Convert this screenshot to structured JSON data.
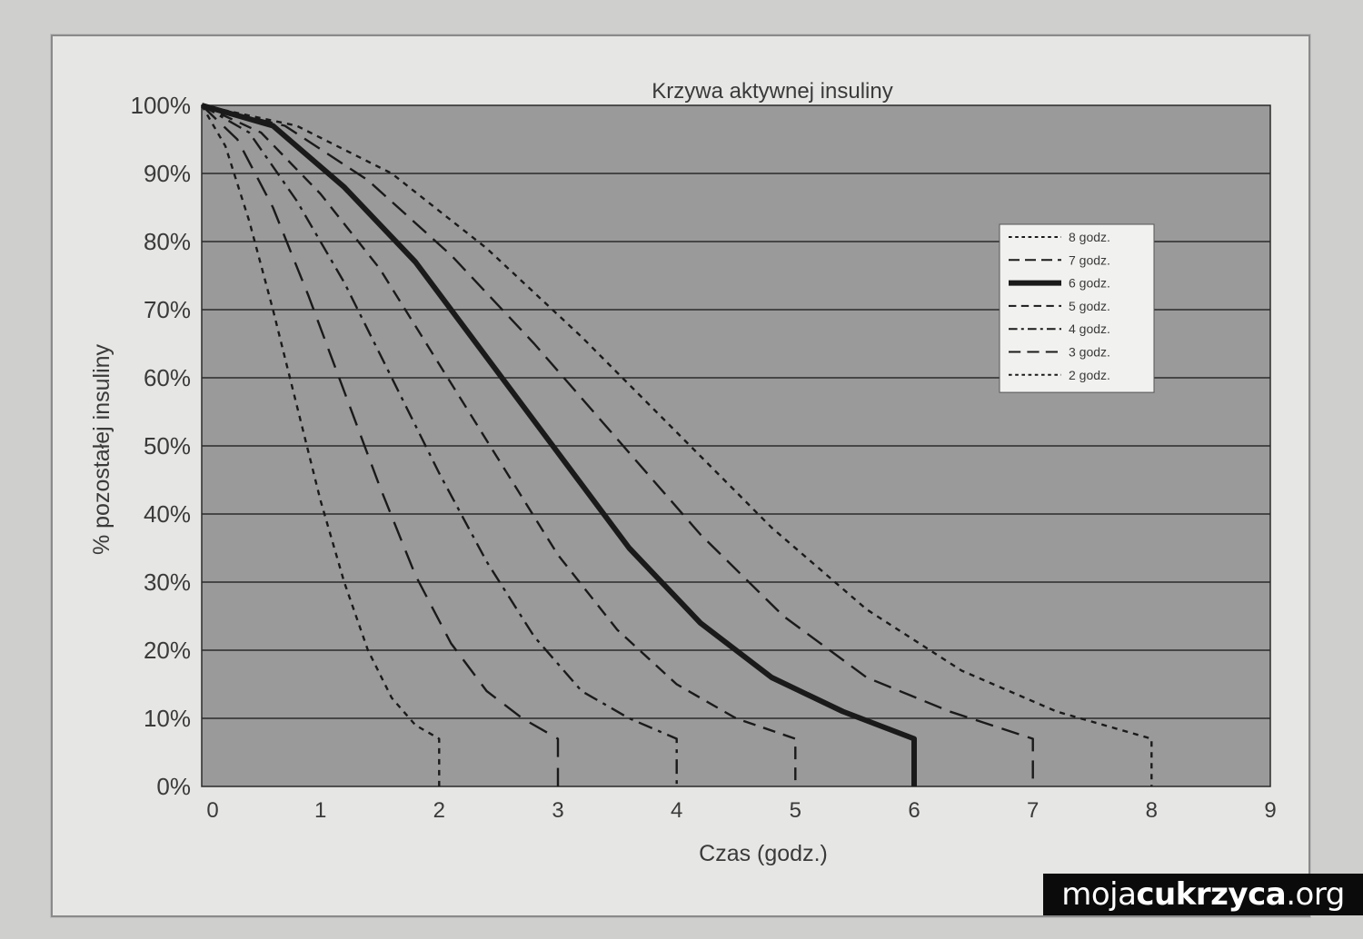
{
  "chart_data": {
    "type": "line",
    "title": "Krzywa aktywnej insuliny",
    "xlabel": "Czas (godz.)",
    "ylabel": "% pozostałej insuliny",
    "xlim": [
      0,
      9
    ],
    "ylim": [
      0,
      100
    ],
    "x_ticks": [
      "0",
      "1",
      "2",
      "3",
      "4",
      "5",
      "6",
      "7",
      "8",
      "9"
    ],
    "y_ticks": [
      "0%",
      "10%",
      "20%",
      "30%",
      "40%",
      "50%",
      "60%",
      "70%",
      "80%",
      "90%",
      "100%"
    ],
    "grid": true,
    "legend_position": "top-right",
    "plot_background": "#9a9a9a",
    "line_color": "#1a1a1a",
    "series": [
      {
        "name": "8 godz.",
        "style": "dotted",
        "x": [
          0,
          0.8,
          1.6,
          2.4,
          3.2,
          4.0,
          4.8,
          5.6,
          6.4,
          7.2,
          8.0,
          8.0
        ],
        "y": [
          100,
          97,
          90,
          79,
          66,
          52,
          38,
          26,
          17,
          11,
          7,
          0
        ]
      },
      {
        "name": "7 godz.",
        "style": "dashed",
        "x": [
          0,
          0.7,
          1.4,
          2.1,
          2.8,
          3.5,
          4.2,
          4.9,
          5.6,
          6.3,
          7.0,
          7.0
        ],
        "y": [
          100,
          97,
          89,
          78,
          65,
          51,
          37,
          25,
          16,
          11,
          7,
          0
        ]
      },
      {
        "name": "6 godz.",
        "style": "thick",
        "x": [
          0,
          0.6,
          1.2,
          1.8,
          2.4,
          3.0,
          3.6,
          4.2,
          4.8,
          5.4,
          6.0,
          6.0
        ],
        "y": [
          100,
          97,
          88,
          77,
          63,
          49,
          35,
          24,
          16,
          11,
          7,
          0
        ]
      },
      {
        "name": "5 godz.",
        "style": "dash-short",
        "x": [
          0,
          0.5,
          1.0,
          1.5,
          2.0,
          2.5,
          3.0,
          3.5,
          4.0,
          4.5,
          5.0,
          5.0
        ],
        "y": [
          100,
          96,
          87,
          76,
          62,
          48,
          34,
          23,
          15,
          10,
          7,
          0
        ]
      },
      {
        "name": "4 godz.",
        "style": "dash-dot",
        "x": [
          0,
          0.4,
          0.8,
          1.2,
          1.6,
          2.0,
          2.4,
          2.8,
          3.2,
          3.6,
          4.0,
          4.0
        ],
        "y": [
          100,
          96,
          86,
          74,
          60,
          46,
          33,
          22,
          14,
          10,
          7,
          0
        ]
      },
      {
        "name": "3 godz.",
        "style": "dashed-long",
        "x": [
          0,
          0.3,
          0.6,
          0.9,
          1.2,
          1.5,
          1.8,
          2.1,
          2.4,
          2.7,
          3.0,
          3.0
        ],
        "y": [
          100,
          95,
          85,
          72,
          58,
          44,
          31,
          21,
          14,
          10,
          7,
          0
        ]
      },
      {
        "name": "2 godz.",
        "style": "dotted",
        "x": [
          0,
          0.2,
          0.4,
          0.6,
          0.8,
          1.0,
          1.2,
          1.4,
          1.6,
          1.8,
          2.0,
          2.0
        ],
        "y": [
          100,
          94,
          83,
          70,
          56,
          42,
          30,
          20,
          13,
          9,
          7,
          0
        ]
      }
    ]
  },
  "watermark": {
    "prefix": "moja",
    "bold": "cukrzyca",
    "suffix": ".org"
  }
}
